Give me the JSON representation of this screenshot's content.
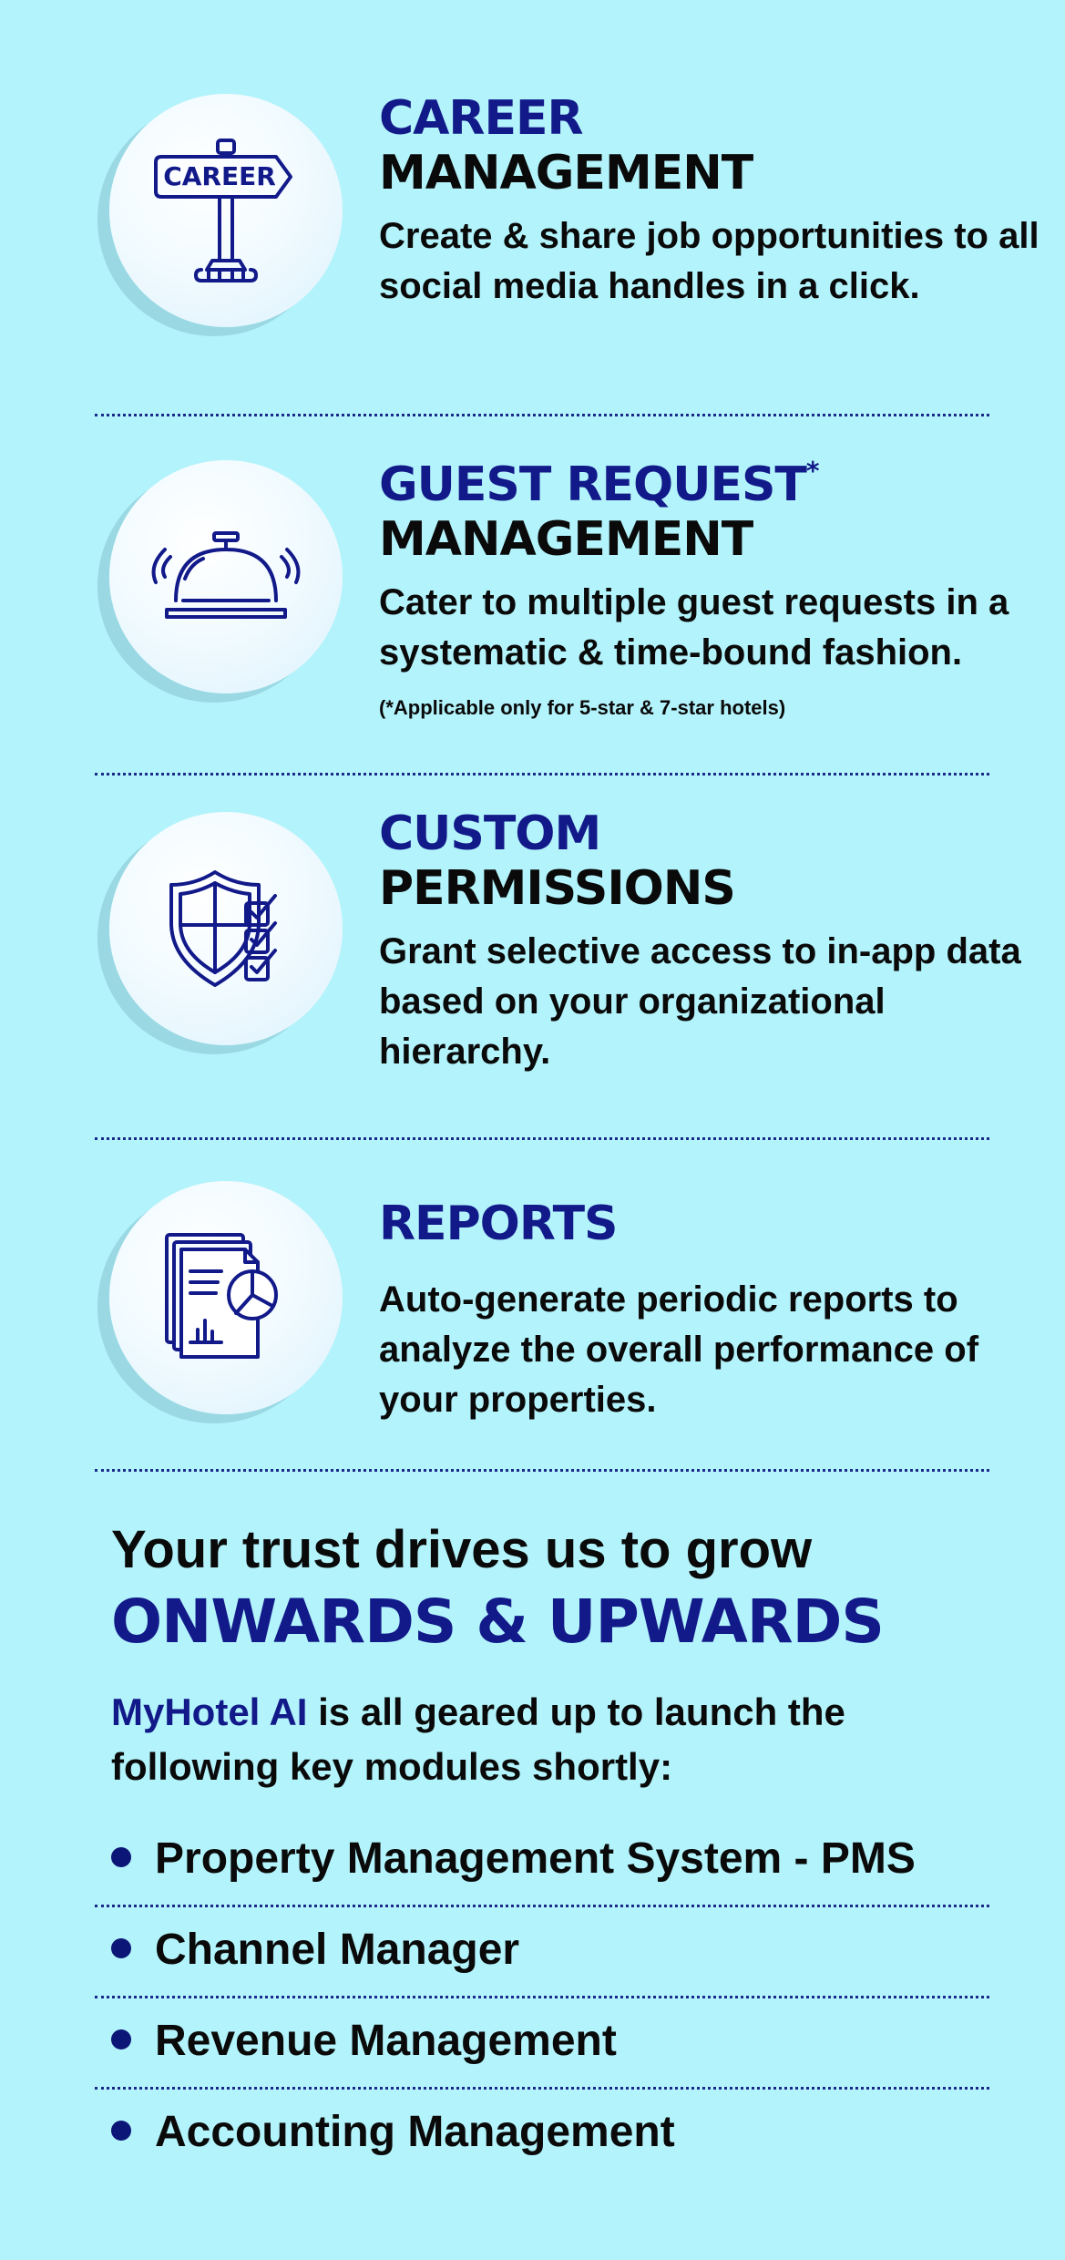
{
  "features": [
    {
      "icon": "career-signpost-icon",
      "icon_text": "CAREER",
      "title_blue": "CAREER",
      "title_black": "MANAGEMENT",
      "description": "Create & share job opportunities to all social media handles in a click."
    },
    {
      "icon": "service-bell-icon",
      "title_blue": "GUEST REQUEST",
      "title_mark": "*",
      "title_black": "MANAGEMENT",
      "description": "Cater to multiple guest requests in a systematic & time-bound fashion.",
      "note": "(*Applicable only for 5-star & 7-star hotels)"
    },
    {
      "icon": "shield-checklist-icon",
      "title_blue": "CUSTOM",
      "title_black": "PERMISSIONS",
      "description": "Grant selective access to in-app data based on your organizational hierarchy."
    },
    {
      "icon": "reports-document-icon",
      "title_blue": "REPORTS",
      "description": "Auto-generate periodic reports to analyze the overall performance of your properties."
    }
  ],
  "trust": {
    "line1": "Your trust drives us to grow",
    "line2": "ONWARDS & UPWARDS",
    "brand": "MyHotel AI",
    "intro_rest": " is all geared up to launch the following key modules shortly:"
  },
  "modules": [
    "Property Management System - PMS",
    "Channel Manager",
    "Revenue Management",
    "Accounting Management"
  ],
  "colors": {
    "background": "#b3f3fb",
    "accent": "#121a8a",
    "text": "#0a0a0a"
  }
}
